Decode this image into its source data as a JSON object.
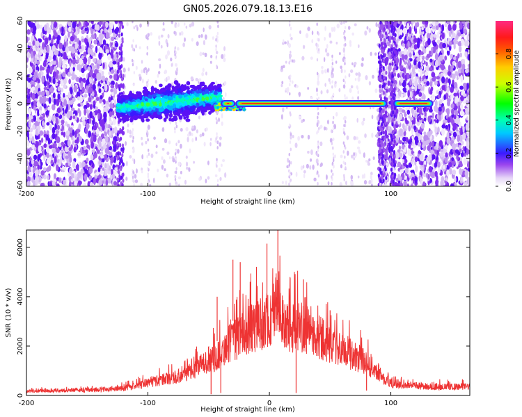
{
  "chart_data": [
    {
      "type": "heatmap",
      "title": "GN05.2026.079.18.13.E16",
      "xlabel": "Height of straight line (km)",
      "ylabel": "Frequency (Hz)",
      "xlim": [
        -200,
        165
      ],
      "ylim": [
        -60,
        60
      ],
      "xticks": [
        -200,
        -100,
        0,
        100
      ],
      "yticks": [
        -60,
        -40,
        -20,
        0,
        20,
        40,
        60
      ],
      "colorbar": {
        "label": "Normalized spectral amplitude",
        "range": [
          0,
          1
        ],
        "ticks": [
          0.0,
          0.2,
          0.4,
          0.6,
          0.8
        ]
      },
      "features": {
        "noise_regions_km": [
          [
            -200,
            -125
          ],
          [
            90,
            165
          ]
        ],
        "sparse_noise_regions_km": [
          [
            -125,
            -35
          ],
          [
            10,
            90
          ]
        ],
        "broad_signal_band_km": [
          -125,
          -40
        ],
        "broad_signal_center_hz": [
          -5,
          5
        ],
        "narrow_line_km": [
          -40,
          135
        ],
        "narrow_line_center_hz": 0,
        "gap_km": [
          97,
          102
        ]
      }
    },
    {
      "type": "line",
      "title": "",
      "xlabel": "Height of straight line (km)",
      "ylabel": "SNR (10 * v/v)",
      "xlim": [
        -200,
        165
      ],
      "ylim": [
        0,
        6700
      ],
      "xticks": [
        -200,
        -100,
        0,
        100
      ],
      "yticks": [
        0,
        2000,
        4000,
        6000
      ],
      "series": [
        {
          "name": "SNR",
          "color": "#ee3333",
          "envelope_x": [
            -200,
            -150,
            -130,
            -120,
            -110,
            -100,
            -90,
            -80,
            -70,
            -60,
            -50,
            -45,
            -40,
            -35,
            -30,
            -25,
            -20,
            -15,
            -10,
            -5,
            0,
            3,
            5,
            8,
            10,
            15,
            20,
            25,
            30,
            35,
            40,
            45,
            50,
            60,
            70,
            80,
            90,
            95,
            100,
            110,
            120,
            130,
            140,
            150,
            160,
            165
          ],
          "envelope_y": [
            250,
            300,
            350,
            400,
            550,
            700,
            850,
            1000,
            1200,
            1500,
            2000,
            2100,
            2300,
            2800,
            3000,
            3300,
            3500,
            3700,
            3900,
            4100,
            4300,
            4500,
            5200,
            4800,
            4000,
            3700,
            3800,
            3900,
            3700,
            3400,
            3300,
            3100,
            2800,
            2500,
            2200,
            1800,
            1300,
            900,
            650,
            600,
            550,
            500,
            500,
            480,
            500,
            500
          ],
          "peaks": [
            {
              "x": 7,
              "y": 6700
            },
            {
              "x": -2,
              "y": 6150
            },
            {
              "x": -24,
              "y": 5400
            },
            {
              "x": -30,
              "y": 5500
            },
            {
              "x": -43,
              "y": 4000
            },
            {
              "x": 28,
              "y": 4700
            },
            {
              "x": 50,
              "y": 3450
            }
          ],
          "dips": [
            {
              "x": -40,
              "y": 100
            },
            {
              "x": -48,
              "y": 50
            },
            {
              "x": 22,
              "y": 100
            },
            {
              "x": 80,
              "y": 200
            }
          ]
        }
      ]
    }
  ]
}
